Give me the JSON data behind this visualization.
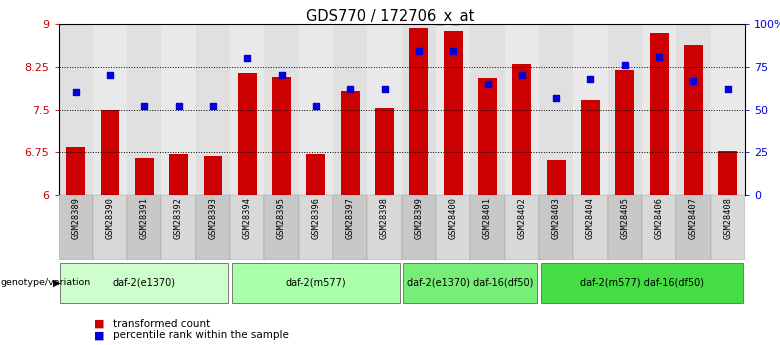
{
  "title": "GDS770 / 172706_x_at",
  "samples": [
    "GSM28389",
    "GSM28390",
    "GSM28391",
    "GSM28392",
    "GSM28393",
    "GSM28394",
    "GSM28395",
    "GSM28396",
    "GSM28397",
    "GSM28398",
    "GSM28399",
    "GSM28400",
    "GSM28401",
    "GSM28402",
    "GSM28403",
    "GSM28404",
    "GSM28405",
    "GSM28406",
    "GSM28407",
    "GSM28408"
  ],
  "bar_values": [
    6.85,
    7.5,
    6.65,
    6.72,
    6.68,
    8.15,
    8.07,
    6.72,
    7.82,
    7.52,
    8.93,
    8.88,
    8.05,
    8.3,
    6.62,
    7.67,
    8.2,
    8.85,
    8.63,
    6.77
  ],
  "dot_values": [
    60,
    70,
    52,
    52,
    52,
    80,
    70,
    52,
    62,
    62,
    84,
    84,
    65,
    70,
    57,
    68,
    76,
    81,
    67,
    62
  ],
  "ylim_left": [
    6.0,
    9.0
  ],
  "ylim_right": [
    0,
    100
  ],
  "yticks_left": [
    6.0,
    6.75,
    7.5,
    8.25,
    9.0
  ],
  "ytick_labels_left": [
    "6",
    "6.75",
    "7.5",
    "8.25",
    "9"
  ],
  "yticks_right": [
    0,
    25,
    50,
    75,
    100
  ],
  "ytick_labels_right": [
    "0",
    "25",
    "50",
    "75",
    "100%"
  ],
  "bar_color": "#cc0000",
  "dot_color": "#0000dd",
  "groups": [
    {
      "label": "daf-2(e1370)",
      "start": 0,
      "end": 5,
      "color": "#ccffcc"
    },
    {
      "label": "daf-2(m577)",
      "start": 5,
      "end": 10,
      "color": "#aaffaa"
    },
    {
      "label": "daf-2(e1370) daf-16(df50)",
      "start": 10,
      "end": 14,
      "color": "#77ee77"
    },
    {
      "label": "daf-2(m577) daf-16(df50)",
      "start": 14,
      "end": 20,
      "color": "#44dd44"
    }
  ],
  "group_row_label": "genotype/variation",
  "legend_items": [
    {
      "label": "transformed count",
      "color": "#cc0000"
    },
    {
      "label": "percentile rank within the sample",
      "color": "#0000dd"
    }
  ],
  "col_bg_even": "#c8c8c8",
  "col_bg_odd": "#d8d8d8"
}
